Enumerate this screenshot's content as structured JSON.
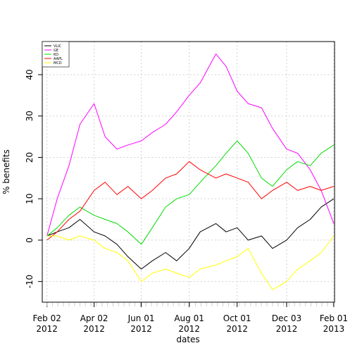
{
  "chart_data": {
    "type": "line",
    "title": "",
    "xlabel": "dates",
    "ylabel": "% benefits",
    "grid": true,
    "legend_position": "top-left",
    "xlim": [
      "2012-01-27",
      "2013-02-02"
    ],
    "ylim": [
      -15,
      48
    ],
    "x_ticks": [
      {
        "date": "2012-02-02",
        "label1": "Feb 02",
        "label2": "2012"
      },
      {
        "date": "2012-04-02",
        "label1": "Apr 02",
        "label2": "2012"
      },
      {
        "date": "2012-06-01",
        "label1": "Jun 01",
        "label2": "2012"
      },
      {
        "date": "2012-08-01",
        "label1": "Aug 01",
        "label2": "2012"
      },
      {
        "date": "2012-10-01",
        "label1": "Oct 01",
        "label2": "2012"
      },
      {
        "date": "2012-12-03",
        "label1": "Dec 03",
        "label2": "2012"
      },
      {
        "date": "2013-02-01",
        "label1": "Feb 01",
        "label2": "2013"
      }
    ],
    "y_ticks": [
      -10,
      0,
      10,
      20,
      30,
      40
    ],
    "series": [
      {
        "name": "VLIC",
        "color": "#000000",
        "points": [
          [
            "2012-02-02",
            1
          ],
          [
            "2012-02-15",
            2
          ],
          [
            "2012-03-01",
            3
          ],
          [
            "2012-03-15",
            5
          ],
          [
            "2012-04-02",
            2
          ],
          [
            "2012-04-16",
            1
          ],
          [
            "2012-05-01",
            -1
          ],
          [
            "2012-05-15",
            -4
          ],
          [
            "2012-06-01",
            -7
          ],
          [
            "2012-06-15",
            -5
          ],
          [
            "2012-07-02",
            -3
          ],
          [
            "2012-07-16",
            -5
          ],
          [
            "2012-08-01",
            -2
          ],
          [
            "2012-08-15",
            2
          ],
          [
            "2012-09-04",
            4
          ],
          [
            "2012-09-17",
            2
          ],
          [
            "2012-10-01",
            3
          ],
          [
            "2012-10-15",
            0
          ],
          [
            "2012-11-01",
            1
          ],
          [
            "2012-11-15",
            -2
          ],
          [
            "2012-12-03",
            0
          ],
          [
            "2012-12-17",
            3
          ],
          [
            "2013-01-02",
            5
          ],
          [
            "2013-01-16",
            8
          ],
          [
            "2013-02-01",
            10
          ]
        ]
      },
      {
        "name": "GE",
        "color": "#FF00FF",
        "points": [
          [
            "2012-02-02",
            1
          ],
          [
            "2012-02-15",
            10
          ],
          [
            "2012-03-01",
            18
          ],
          [
            "2012-03-15",
            28
          ],
          [
            "2012-04-02",
            33
          ],
          [
            "2012-04-16",
            25
          ],
          [
            "2012-05-01",
            22
          ],
          [
            "2012-05-15",
            23
          ],
          [
            "2012-06-01",
            24
          ],
          [
            "2012-06-15",
            26
          ],
          [
            "2012-07-02",
            28
          ],
          [
            "2012-07-16",
            31
          ],
          [
            "2012-08-01",
            35
          ],
          [
            "2012-08-15",
            38
          ],
          [
            "2012-09-04",
            45
          ],
          [
            "2012-09-17",
            42
          ],
          [
            "2012-10-01",
            36
          ],
          [
            "2012-10-15",
            33
          ],
          [
            "2012-11-01",
            32
          ],
          [
            "2012-11-15",
            27
          ],
          [
            "2012-12-03",
            22
          ],
          [
            "2012-12-17",
            21
          ],
          [
            "2013-01-02",
            17
          ],
          [
            "2013-01-16",
            12
          ],
          [
            "2013-02-01",
            4
          ]
        ]
      },
      {
        "name": "KO",
        "color": "#00DD00",
        "points": [
          [
            "2012-02-02",
            1
          ],
          [
            "2012-02-15",
            3
          ],
          [
            "2012-03-01",
            6
          ],
          [
            "2012-03-15",
            8
          ],
          [
            "2012-04-02",
            6
          ],
          [
            "2012-04-16",
            5
          ],
          [
            "2012-05-01",
            4
          ],
          [
            "2012-05-15",
            2
          ],
          [
            "2012-06-01",
            -1
          ],
          [
            "2012-06-15",
            3
          ],
          [
            "2012-07-02",
            8
          ],
          [
            "2012-07-16",
            10
          ],
          [
            "2012-08-01",
            11
          ],
          [
            "2012-08-15",
            14
          ],
          [
            "2012-09-04",
            18
          ],
          [
            "2012-09-17",
            21
          ],
          [
            "2012-10-01",
            24
          ],
          [
            "2012-10-15",
            21
          ],
          [
            "2012-11-01",
            15
          ],
          [
            "2012-11-15",
            13
          ],
          [
            "2012-12-03",
            17
          ],
          [
            "2012-12-17",
            19
          ],
          [
            "2013-01-02",
            18
          ],
          [
            "2013-01-16",
            21
          ],
          [
            "2013-02-01",
            23
          ]
        ]
      },
      {
        "name": "AAPL",
        "color": "#FF0000",
        "points": [
          [
            "2012-02-02",
            0
          ],
          [
            "2012-02-15",
            2
          ],
          [
            "2012-03-01",
            5
          ],
          [
            "2012-03-15",
            7
          ],
          [
            "2012-04-02",
            12
          ],
          [
            "2012-04-16",
            14
          ],
          [
            "2012-05-01",
            11
          ],
          [
            "2012-05-15",
            13
          ],
          [
            "2012-06-01",
            10
          ],
          [
            "2012-06-15",
            12
          ],
          [
            "2012-07-02",
            15
          ],
          [
            "2012-07-16",
            16
          ],
          [
            "2012-08-01",
            19
          ],
          [
            "2012-08-15",
            17
          ],
          [
            "2012-09-04",
            15
          ],
          [
            "2012-09-17",
            16
          ],
          [
            "2012-10-01",
            15
          ],
          [
            "2012-10-15",
            14
          ],
          [
            "2012-11-01",
            10
          ],
          [
            "2012-11-15",
            12
          ],
          [
            "2012-12-03",
            14
          ],
          [
            "2012-12-17",
            12
          ],
          [
            "2013-01-02",
            13
          ],
          [
            "2013-01-16",
            12
          ],
          [
            "2013-02-01",
            13
          ]
        ]
      },
      {
        "name": "MCD",
        "color": "#FFFF00",
        "points": [
          [
            "2012-02-02",
            1
          ],
          [
            "2012-02-15",
            1
          ],
          [
            "2012-03-01",
            0
          ],
          [
            "2012-03-15",
            1
          ],
          [
            "2012-04-02",
            0
          ],
          [
            "2012-04-16",
            -2
          ],
          [
            "2012-05-01",
            -3
          ],
          [
            "2012-05-15",
            -5
          ],
          [
            "2012-06-01",
            -10
          ],
          [
            "2012-06-15",
            -8
          ],
          [
            "2012-07-02",
            -7
          ],
          [
            "2012-07-16",
            -8
          ],
          [
            "2012-08-01",
            -9
          ],
          [
            "2012-08-15",
            -7
          ],
          [
            "2012-09-04",
            -6
          ],
          [
            "2012-09-17",
            -5
          ],
          [
            "2012-10-01",
            -4
          ],
          [
            "2012-10-15",
            -2
          ],
          [
            "2012-11-01",
            -8
          ],
          [
            "2012-11-15",
            -12
          ],
          [
            "2012-12-03",
            -10
          ],
          [
            "2012-12-17",
            -7
          ],
          [
            "2013-01-02",
            -5
          ],
          [
            "2013-01-16",
            -3
          ],
          [
            "2013-02-01",
            1
          ]
        ]
      }
    ]
  }
}
